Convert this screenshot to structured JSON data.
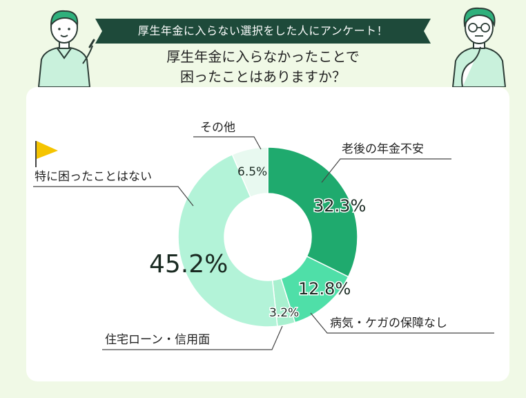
{
  "header": {
    "banner": "厚生年金に入らない選択をした人にアンケート！",
    "question_line1": "厚生年金に入らなかったことで",
    "question_line2": "困ったことはありますか？"
  },
  "colors": {
    "background": "#f0f9e6",
    "banner": "#1e4a3a",
    "flag": "#f5c400"
  },
  "chart_data": {
    "type": "pie",
    "donut": true,
    "unit": "%",
    "categories": [
      "老後の年金不安",
      "病気・ケガの保障なし",
      "住宅ローン・信用面",
      "特に困ったことはない",
      "その他"
    ],
    "values": [
      32.3,
      12.8,
      3.2,
      45.2,
      6.5
    ],
    "value_labels": [
      "32.3%",
      "12.8%",
      "3.2%",
      "45.2%",
      "6.5%"
    ],
    "colors": [
      "#1faa6e",
      "#4fdfa8",
      "#a8f0cf",
      "#b3f3d8",
      "#e8f9f0"
    ],
    "start_angle": "12 o'clock",
    "direction": "clockwise"
  }
}
